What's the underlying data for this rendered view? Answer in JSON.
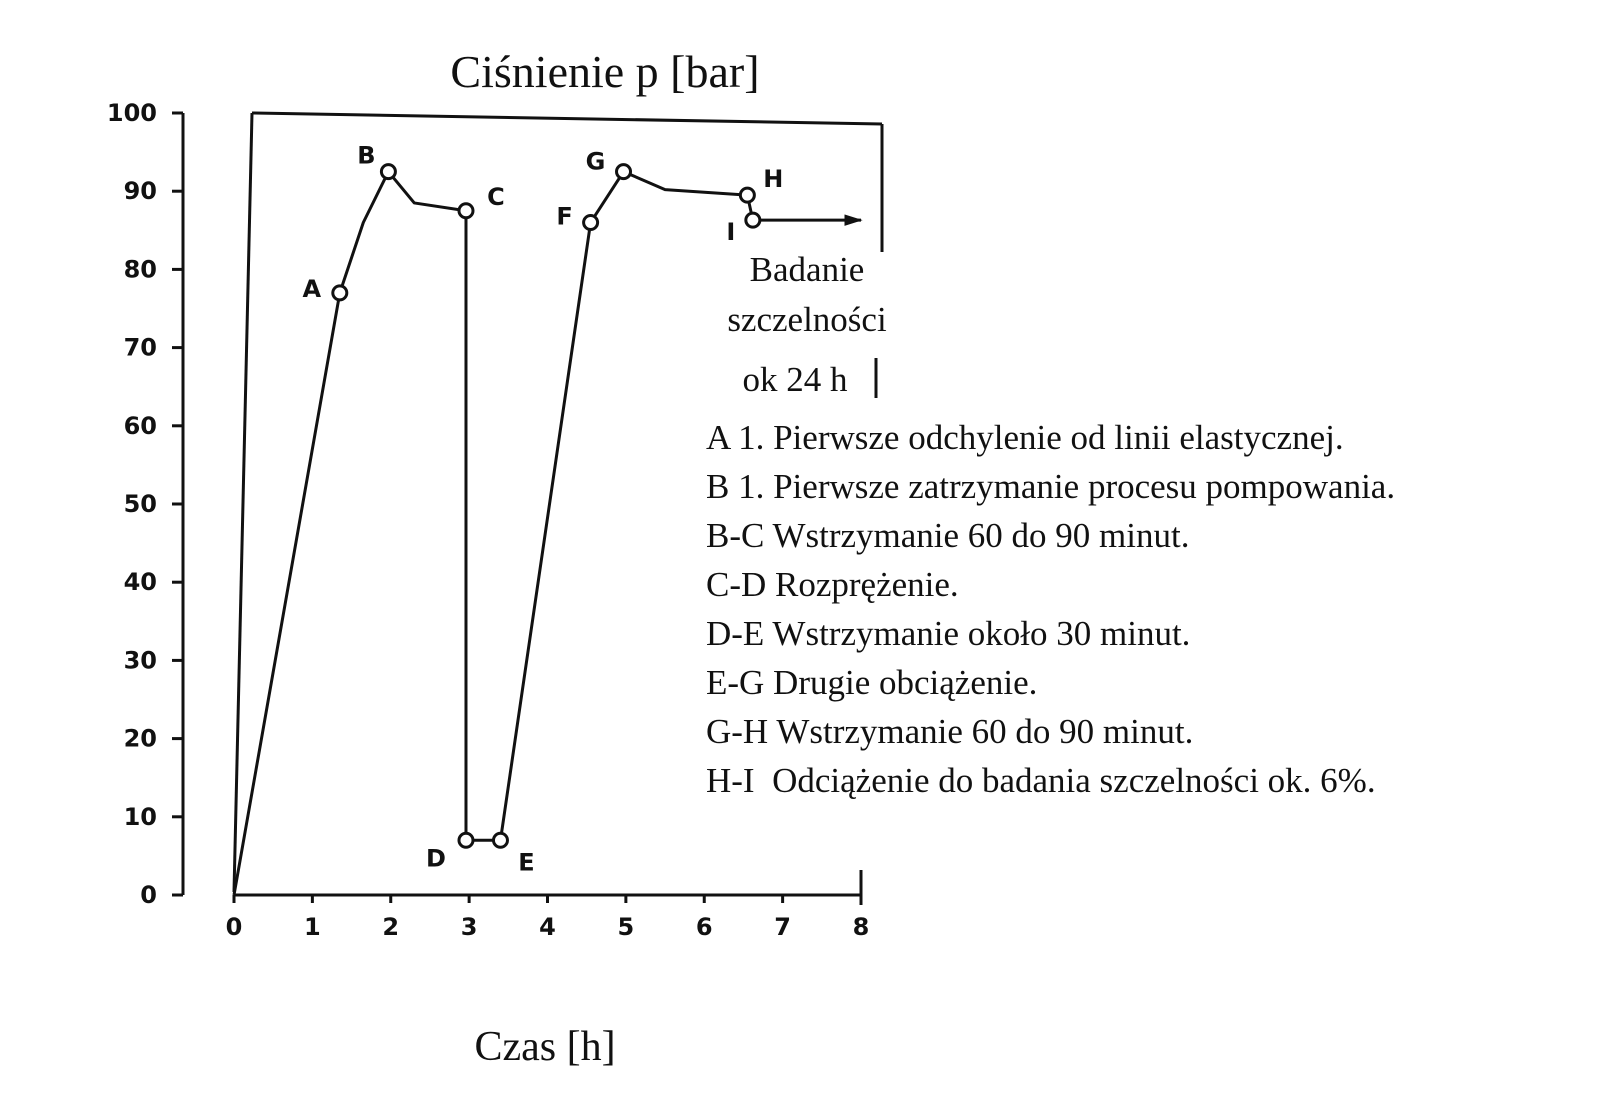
{
  "chart_data": {
    "type": "line",
    "title": "Ciśnienie p [bar]",
    "xlabel": "Czas [h]",
    "ylabel": "",
    "xlim": [
      0,
      8
    ],
    "ylim": [
      0,
      100
    ],
    "x_ticks": [
      "0",
      "1",
      "2",
      "3",
      "4",
      "5",
      "6",
      "7",
      "8"
    ],
    "y_ticks": [
      "0",
      "10",
      "20",
      "30",
      "40",
      "50",
      "60",
      "70",
      "80",
      "90",
      "100"
    ],
    "grid": false,
    "series": [
      {
        "color": "#111111",
        "points": [
          {
            "x": 0,
            "y": 0
          },
          {
            "x": 1.35,
            "y": 77,
            "label": "A"
          },
          {
            "x": 1.65,
            "y": 86
          },
          {
            "x": 1.97,
            "y": 92.5,
            "label": "B"
          },
          {
            "x": 2.3,
            "y": 88.5
          },
          {
            "x": 2.96,
            "y": 87.5,
            "label": "C"
          },
          {
            "x": 2.96,
            "y": 7,
            "label": "D"
          },
          {
            "x": 3.4,
            "y": 7,
            "label": "E"
          },
          {
            "x": 4.55,
            "y": 86,
            "label": "F"
          },
          {
            "x": 4.97,
            "y": 92.5,
            "label": "G"
          },
          {
            "x": 5.5,
            "y": 90.2
          },
          {
            "x": 6.55,
            "y": 89.5,
            "label": "H"
          },
          {
            "x": 6.62,
            "y": 86.3,
            "label": "I"
          },
          {
            "x": 8,
            "y": 86.3
          }
        ]
      }
    ],
    "annotations": {
      "leak_test": [
        "Badanie",
        "szczelności",
        "ok 24 h"
      ]
    },
    "legend": [
      "A 1. Pierwsze odchylenie od linii elastycznej.",
      "B 1. Pierwsze zatrzymanie procesu pompowania.",
      "B-C Wstrzymanie 60 do 90 minut.",
      "C-D Rozprężenie.",
      "D-E Wstrzymanie około 30 minut.",
      "E-G Drugie obciążenie.",
      "G-H Wstrzymanie 60 do 90 minut.",
      "H-I  Odciążenie do badania szczelności ok. 6%."
    ]
  }
}
